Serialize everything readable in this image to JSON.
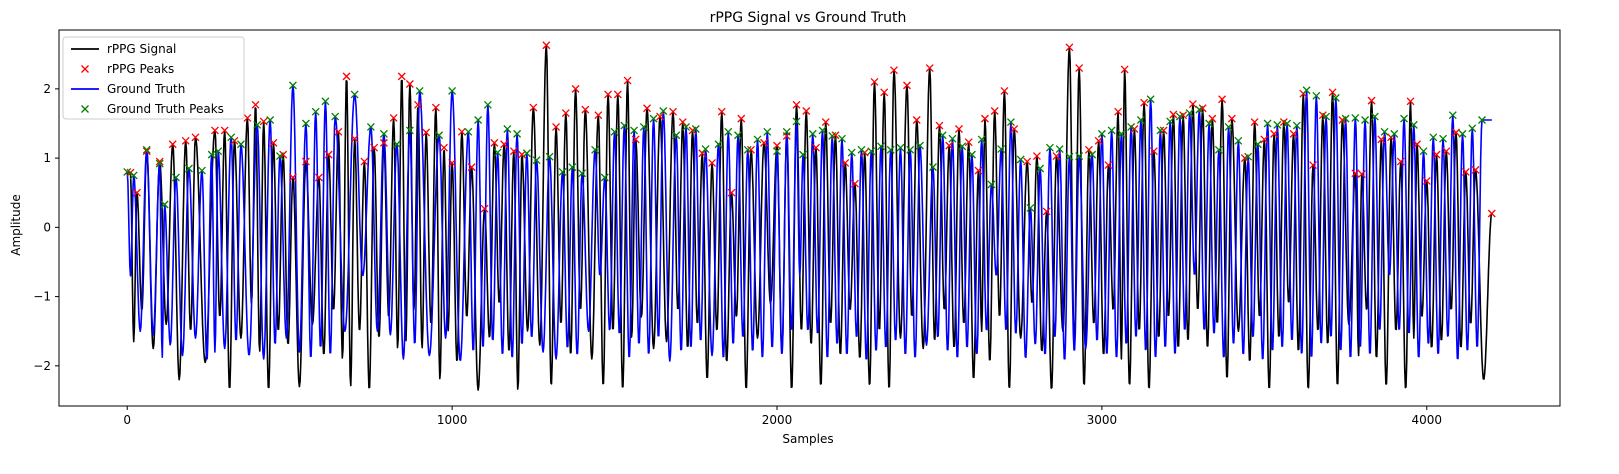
{
  "chart_data": {
    "type": "line",
    "title": "rPPG Signal vs Ground Truth",
    "xlabel": "Samples",
    "ylabel": "Amplitude",
    "xlim": [
      -210,
      4410
    ],
    "ylim": [
      -2.58,
      2.85
    ],
    "xticks": [
      0,
      1000,
      2000,
      3000,
      4000
    ],
    "yticks": [
      -2,
      -1,
      0,
      1,
      2
    ],
    "xtick_labels": [
      "0",
      "1000",
      "2000",
      "3000",
      "4000"
    ],
    "ytick_labels": [
      "−2",
      "−1",
      "0",
      "1",
      "2"
    ],
    "grid": false,
    "legend_position": "upper-left",
    "legend": [
      {
        "label": "rPPG Signal",
        "kind": "line",
        "color": "#000000"
      },
      {
        "label": "rPPG Peaks",
        "kind": "marker",
        "color": "#ff0000"
      },
      {
        "label": "Ground Truth",
        "kind": "line",
        "color": "#0000ff"
      },
      {
        "label": "Ground Truth Peaks",
        "kind": "marker",
        "color": "#008000"
      }
    ],
    "series": [
      {
        "name": "rPPG Signal",
        "color": "#000000",
        "n_samples": 4200,
        "x_start": 0,
        "x_end": 4200,
        "y_min": -2.35,
        "y_max": 2.63,
        "representative_points": [
          [
            0,
            -0.1
          ],
          [
            30,
            0.5
          ],
          [
            60,
            -1.65
          ],
          [
            150,
            -1.15
          ],
          [
            170,
            1.72
          ],
          [
            200,
            -1.75
          ],
          [
            390,
            -2.2
          ],
          [
            640,
            -1.95
          ],
          [
            850,
            -2.35
          ],
          [
            1000,
            0.95
          ],
          [
            1260,
            -2.35
          ],
          [
            1290,
            2.63
          ],
          [
            1490,
            -2.3
          ],
          [
            1540,
            2.12
          ],
          [
            2140,
            1.52
          ],
          [
            2300,
            2.1
          ],
          [
            2360,
            -2.3
          ],
          [
            2470,
            2.3
          ],
          [
            2900,
            2.6
          ],
          [
            2920,
            -2.35
          ],
          [
            3060,
            2.28
          ],
          [
            3700,
            1.95
          ],
          [
            3900,
            0.8
          ],
          [
            4200,
            0.0
          ]
        ]
      },
      {
        "name": "rPPG Peaks",
        "color": "#ff0000",
        "points": [
          [
            10,
            0.79
          ],
          [
            30,
            0.5
          ],
          [
            60,
            1.1
          ],
          [
            100,
            0.95
          ],
          [
            140,
            1.2
          ],
          [
            180,
            1.25
          ],
          [
            210,
            1.3
          ],
          [
            270,
            1.4
          ],
          [
            300,
            1.4
          ],
          [
            330,
            1.25
          ],
          [
            370,
            1.58
          ],
          [
            395,
            1.77
          ],
          [
            420,
            1.53
          ],
          [
            450,
            1.22
          ],
          [
            480,
            1.05
          ],
          [
            510,
            0.72
          ],
          [
            550,
            0.95
          ],
          [
            590,
            0.72
          ],
          [
            620,
            1.05
          ],
          [
            650,
            1.38
          ],
          [
            675,
            2.18
          ],
          [
            700,
            1.28
          ],
          [
            730,
            0.95
          ],
          [
            760,
            1.15
          ],
          [
            790,
            1.22
          ],
          [
            820,
            1.58
          ],
          [
            845,
            2.18
          ],
          [
            870,
            2.07
          ],
          [
            895,
            1.77
          ],
          [
            920,
            1.37
          ],
          [
            950,
            1.73
          ],
          [
            975,
            1.15
          ],
          [
            1000,
            0.93
          ],
          [
            1030,
            1.38
          ],
          [
            1060,
            0.87
          ],
          [
            1100,
            0.27
          ],
          [
            1130,
            1.22
          ],
          [
            1160,
            1.2
          ],
          [
            1190,
            1.1
          ],
          [
            1215,
            1.05
          ],
          [
            1250,
            1.73
          ],
          [
            1290,
            2.63
          ],
          [
            1320,
            1.45
          ],
          [
            1350,
            1.65
          ],
          [
            1380,
            2.0
          ],
          [
            1410,
            1.7
          ],
          [
            1450,
            1.62
          ],
          [
            1480,
            1.92
          ],
          [
            1510,
            1.92
          ],
          [
            1540,
            2.12
          ],
          [
            1565,
            1.27
          ],
          [
            1600,
            1.72
          ],
          [
            1640,
            1.6
          ],
          [
            1680,
            1.67
          ],
          [
            1710,
            1.52
          ],
          [
            1740,
            1.4
          ],
          [
            1770,
            1.07
          ],
          [
            1800,
            0.93
          ],
          [
            1830,
            1.67
          ],
          [
            1860,
            0.5
          ],
          [
            1890,
            1.57
          ],
          [
            1920,
            1.12
          ],
          [
            1960,
            1.22
          ],
          [
            2000,
            1.18
          ],
          [
            2030,
            1.32
          ],
          [
            2060,
            1.77
          ],
          [
            2090,
            1.68
          ],
          [
            2120,
            1.15
          ],
          [
            2150,
            1.52
          ],
          [
            2180,
            1.33
          ],
          [
            2210,
            0.93
          ],
          [
            2240,
            0.63
          ],
          [
            2270,
            1.08
          ],
          [
            2300,
            2.1
          ],
          [
            2330,
            1.95
          ],
          [
            2360,
            2.27
          ],
          [
            2400,
            2.05
          ],
          [
            2430,
            1.55
          ],
          [
            2470,
            2.3
          ],
          [
            2500,
            1.47
          ],
          [
            2530,
            1.18
          ],
          [
            2560,
            1.42
          ],
          [
            2590,
            1.23
          ],
          [
            2620,
            0.82
          ],
          [
            2640,
            1.57
          ],
          [
            2670,
            1.68
          ],
          [
            2700,
            1.97
          ],
          [
            2730,
            1.42
          ],
          [
            2770,
            0.95
          ],
          [
            2800,
            1.03
          ],
          [
            2830,
            0.23
          ],
          [
            2860,
            1.03
          ],
          [
            2900,
            2.6
          ],
          [
            2930,
            2.3
          ],
          [
            2960,
            1.12
          ],
          [
            2990,
            1.25
          ],
          [
            3020,
            0.9
          ],
          [
            3050,
            1.67
          ],
          [
            3070,
            2.28
          ],
          [
            3100,
            1.42
          ],
          [
            3130,
            1.8
          ],
          [
            3160,
            1.1
          ],
          [
            3190,
            1.4
          ],
          [
            3220,
            1.63
          ],
          [
            3250,
            1.62
          ],
          [
            3280,
            1.78
          ],
          [
            3310,
            1.72
          ],
          [
            3340,
            1.57
          ],
          [
            3370,
            1.85
          ],
          [
            3400,
            1.57
          ],
          [
            3440,
            1.0
          ],
          [
            3470,
            1.52
          ],
          [
            3500,
            1.27
          ],
          [
            3530,
            1.35
          ],
          [
            3560,
            1.52
          ],
          [
            3590,
            1.35
          ],
          [
            3620,
            1.93
          ],
          [
            3650,
            0.9
          ],
          [
            3680,
            1.62
          ],
          [
            3710,
            1.95
          ],
          [
            3740,
            1.55
          ],
          [
            3780,
            0.78
          ],
          [
            3800,
            0.77
          ],
          [
            3830,
            1.83
          ],
          [
            3860,
            1.27
          ],
          [
            3890,
            1.3
          ],
          [
            3920,
            0.95
          ],
          [
            3950,
            1.82
          ],
          [
            3970,
            1.2
          ],
          [
            4000,
            0.67
          ],
          [
            4030,
            1.05
          ],
          [
            4060,
            1.1
          ],
          [
            4090,
            1.37
          ],
          [
            4120,
            0.8
          ],
          [
            4150,
            0.83
          ],
          [
            4200,
            0.2
          ]
        ]
      },
      {
        "name": "Ground Truth",
        "color": "#0000ff",
        "n_samples": 4200,
        "x_start": 0,
        "x_end": 4200,
        "y_min": -1.93,
        "y_max": 2.05,
        "representative_points": [
          [
            0,
            0.15
          ],
          [
            20,
            0.8
          ],
          [
            40,
            -0.7
          ],
          [
            280,
            1.15
          ],
          [
            380,
            -1.55
          ],
          [
            520,
            2.05
          ],
          [
            530,
            -1.9
          ],
          [
            1000,
            1.97
          ],
          [
            1280,
            -1.85
          ],
          [
            1600,
            -1.93
          ],
          [
            2400,
            1.15
          ],
          [
            3000,
            1.03
          ],
          [
            3630,
            1.97
          ],
          [
            3900,
            -1.9
          ],
          [
            4200,
            -0.3
          ]
        ]
      },
      {
        "name": "Ground Truth Peaks",
        "color": "#008000",
        "points": [
          [
            0,
            0.8
          ],
          [
            20,
            0.75
          ],
          [
            60,
            1.12
          ],
          [
            100,
            0.92
          ],
          [
            115,
            0.33
          ],
          [
            150,
            0.72
          ],
          [
            190,
            0.85
          ],
          [
            230,
            0.82
          ],
          [
            260,
            1.05
          ],
          [
            280,
            1.1
          ],
          [
            320,
            1.3
          ],
          [
            350,
            1.2
          ],
          [
            400,
            1.48
          ],
          [
            440,
            1.55
          ],
          [
            470,
            1.03
          ],
          [
            510,
            2.05
          ],
          [
            550,
            1.5
          ],
          [
            580,
            1.67
          ],
          [
            610,
            1.82
          ],
          [
            640,
            1.6
          ],
          [
            700,
            1.92
          ],
          [
            750,
            1.45
          ],
          [
            790,
            1.35
          ],
          [
            830,
            1.2
          ],
          [
            870,
            1.4
          ],
          [
            900,
            1.97
          ],
          [
            960,
            1.33
          ],
          [
            1000,
            1.97
          ],
          [
            1050,
            1.38
          ],
          [
            1080,
            1.55
          ],
          [
            1110,
            1.77
          ],
          [
            1140,
            1.08
          ],
          [
            1170,
            1.42
          ],
          [
            1200,
            1.35
          ],
          [
            1230,
            1.07
          ],
          [
            1260,
            0.97
          ],
          [
            1300,
            1.02
          ],
          [
            1340,
            0.8
          ],
          [
            1370,
            0.87
          ],
          [
            1400,
            0.78
          ],
          [
            1440,
            1.12
          ],
          [
            1470,
            0.72
          ],
          [
            1500,
            1.38
          ],
          [
            1530,
            1.47
          ],
          [
            1560,
            1.4
          ],
          [
            1590,
            1.45
          ],
          [
            1620,
            1.57
          ],
          [
            1650,
            1.68
          ],
          [
            1690,
            1.33
          ],
          [
            1720,
            1.45
          ],
          [
            1750,
            1.42
          ],
          [
            1780,
            1.13
          ],
          [
            1820,
            1.2
          ],
          [
            1850,
            1.38
          ],
          [
            1880,
            1.33
          ],
          [
            1910,
            1.12
          ],
          [
            1940,
            1.27
          ],
          [
            1970,
            1.38
          ],
          [
            2000,
            1.1
          ],
          [
            2030,
            1.38
          ],
          [
            2060,
            1.53
          ],
          [
            2080,
            1.05
          ],
          [
            2110,
            1.35
          ],
          [
            2140,
            1.4
          ],
          [
            2170,
            1.32
          ],
          [
            2200,
            1.28
          ],
          [
            2230,
            1.08
          ],
          [
            2260,
            1.12
          ],
          [
            2290,
            1.1
          ],
          [
            2320,
            1.17
          ],
          [
            2350,
            1.12
          ],
          [
            2380,
            1.15
          ],
          [
            2410,
            1.12
          ],
          [
            2440,
            1.18
          ],
          [
            2480,
            0.87
          ],
          [
            2510,
            1.33
          ],
          [
            2540,
            1.28
          ],
          [
            2570,
            1.17
          ],
          [
            2600,
            1.05
          ],
          [
            2630,
            1.27
          ],
          [
            2660,
            0.62
          ],
          [
            2690,
            1.13
          ],
          [
            2720,
            1.52
          ],
          [
            2750,
            0.98
          ],
          [
            2780,
            0.28
          ],
          [
            2810,
            0.85
          ],
          [
            2840,
            1.15
          ],
          [
            2870,
            1.13
          ],
          [
            2900,
            1.02
          ],
          [
            2930,
            1.03
          ],
          [
            2970,
            1.05
          ],
          [
            3000,
            1.35
          ],
          [
            3030,
            1.4
          ],
          [
            3060,
            1.35
          ],
          [
            3090,
            1.45
          ],
          [
            3120,
            1.55
          ],
          [
            3150,
            1.85
          ],
          [
            3180,
            1.4
          ],
          [
            3210,
            1.53
          ],
          [
            3240,
            1.6
          ],
          [
            3270,
            1.65
          ],
          [
            3300,
            1.7
          ],
          [
            3330,
            1.5
          ],
          [
            3360,
            1.12
          ],
          [
            3390,
            1.45
          ],
          [
            3420,
            1.25
          ],
          [
            3450,
            1.02
          ],
          [
            3480,
            1.2
          ],
          [
            3510,
            1.5
          ],
          [
            3540,
            1.48
          ],
          [
            3570,
            1.5
          ],
          [
            3600,
            1.47
          ],
          [
            3630,
            1.98
          ],
          [
            3660,
            1.9
          ],
          [
            3690,
            1.6
          ],
          [
            3720,
            1.87
          ],
          [
            3750,
            1.57
          ],
          [
            3780,
            1.58
          ],
          [
            3810,
            1.55
          ],
          [
            3840,
            1.6
          ],
          [
            3870,
            1.38
          ],
          [
            3900,
            1.35
          ],
          [
            3930,
            1.57
          ],
          [
            3960,
            1.48
          ],
          [
            3990,
            1.1
          ],
          [
            4020,
            1.3
          ],
          [
            4050,
            1.28
          ],
          [
            4080,
            1.62
          ],
          [
            4110,
            1.35
          ],
          [
            4140,
            1.43
          ],
          [
            4170,
            1.55
          ]
        ]
      }
    ]
  }
}
